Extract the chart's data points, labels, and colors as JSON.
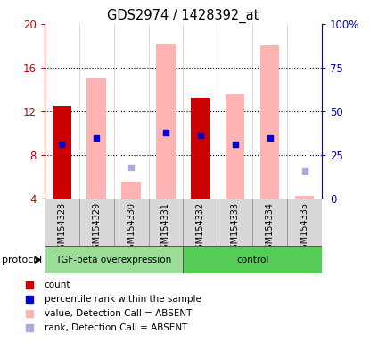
{
  "title": "GDS2974 / 1428392_at",
  "samples": [
    "GSM154328",
    "GSM154329",
    "GSM154330",
    "GSM154331",
    "GSM154332",
    "GSM154333",
    "GSM154334",
    "GSM154335"
  ],
  "ylim_left": [
    4,
    20
  ],
  "ylim_right": [
    0,
    100
  ],
  "yticks_left": [
    4,
    8,
    12,
    16,
    20
  ],
  "yticks_right": [
    0,
    25,
    50,
    75,
    100
  ],
  "ytick_labels_right": [
    "0",
    "25",
    "50",
    "75",
    "100%"
  ],
  "red_bar_tops": [
    12.5,
    null,
    null,
    null,
    13.2,
    null,
    null,
    null
  ],
  "red_bar_color": "#cc0000",
  "pink_bar_tops": [
    null,
    15.0,
    5.5,
    18.2,
    null,
    13.5,
    18.0,
    4.2
  ],
  "pink_bar_color": "#ffb3b3",
  "bar_bottom": 4.0,
  "blue_sq_y": [
    9.0,
    9.5,
    null,
    10.0,
    9.8,
    9.0,
    9.5,
    null
  ],
  "blue_sq_color": "#0000cc",
  "lblue_sq_y": [
    null,
    null,
    6.8,
    null,
    null,
    null,
    null,
    6.5
  ],
  "lblue_sq_color": "#aaaadd",
  "left_axis_color": "#cc0000",
  "right_axis_color": "#0000bb",
  "grid_yticks": [
    8,
    12,
    16
  ],
  "bar_width": 0.55,
  "tgf_group_color": "#99dd99",
  "ctrl_group_color": "#55cc55",
  "tgf_label": "TGF-beta overexpression",
  "ctrl_label": "control",
  "protocol_label": "protocol",
  "legend": [
    {
      "label": "count",
      "color": "#cc0000"
    },
    {
      "label": "percentile rank within the sample",
      "color": "#0000cc"
    },
    {
      "label": "value, Detection Call = ABSENT",
      "color": "#ffb3b3"
    },
    {
      "label": "rank, Detection Call = ABSENT",
      "color": "#aaaadd"
    }
  ]
}
